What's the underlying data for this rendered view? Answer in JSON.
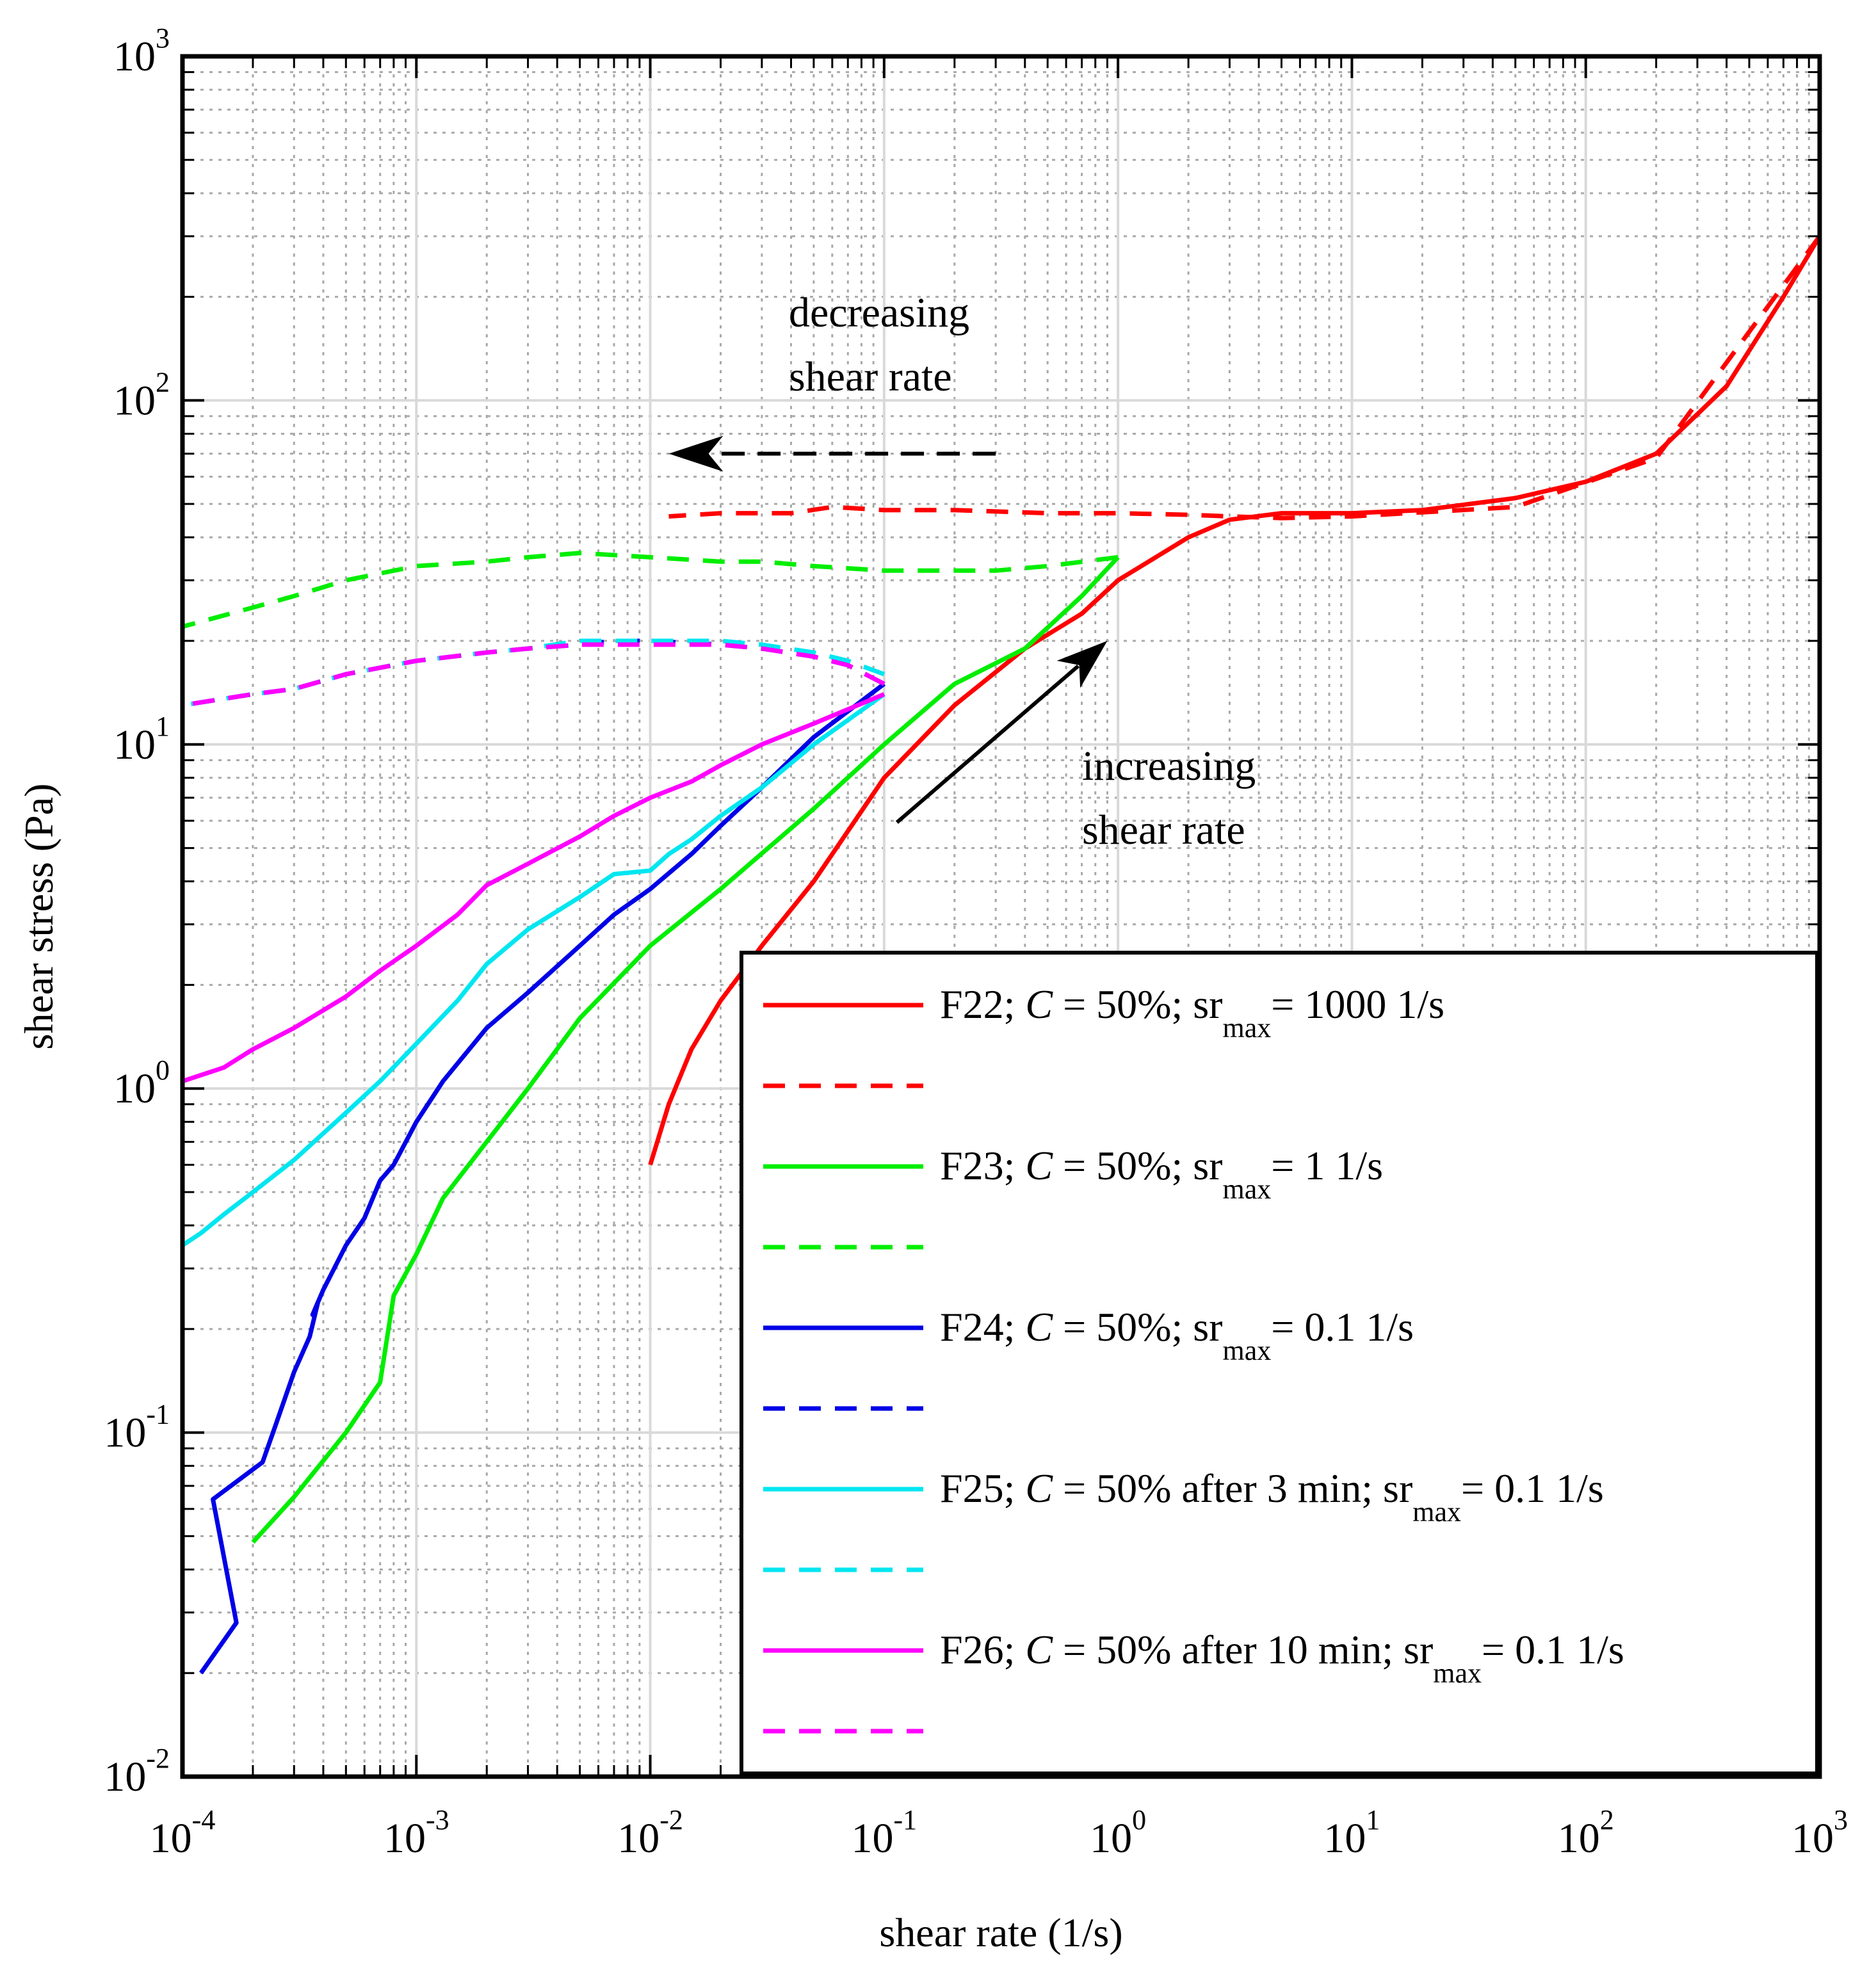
{
  "chart_data": {
    "type": "line",
    "xscale": "log",
    "yscale": "log",
    "xlim": [
      0.0001,
      1000
    ],
    "ylim": [
      0.01,
      1000
    ],
    "xlabel": "shear rate (1/s)",
    "ylabel": "shear stress (Pa)",
    "grid": true,
    "legend_position": "bottom-right",
    "xticks": [
      {
        "base": "10",
        "exp": "-4"
      },
      {
        "base": "10",
        "exp": "-3"
      },
      {
        "base": "10",
        "exp": "-2"
      },
      {
        "base": "10",
        "exp": "-1"
      },
      {
        "base": "10",
        "exp": "0"
      },
      {
        "base": "10",
        "exp": "1"
      },
      {
        "base": "10",
        "exp": "2"
      },
      {
        "base": "10",
        "exp": "3"
      }
    ],
    "yticks": [
      {
        "base": "10",
        "exp": "-2"
      },
      {
        "base": "10",
        "exp": "-1"
      },
      {
        "base": "10",
        "exp": "0"
      },
      {
        "base": "10",
        "exp": "1"
      },
      {
        "base": "10",
        "exp": "2"
      },
      {
        "base": "10",
        "exp": "3"
      }
    ],
    "annotations": [
      {
        "lines": [
          "decreasing",
          "shear rate"
        ],
        "arrow_color": "#000000",
        "arrow_style": "dashed",
        "from": [
          0.3,
          70
        ],
        "to": [
          0.012,
          70
        ]
      },
      {
        "lines": [
          "increasing",
          "shear rate"
        ],
        "arrow_color": "#000000",
        "arrow_style": "solid",
        "from": [
          0.1,
          5
        ],
        "to": [
          0.9,
          20
        ]
      }
    ],
    "legend_entries": [
      {
        "id": "f22",
        "prefix": "F22;  ",
        "var": "C",
        "mid": " = 50%; sr",
        "sub": "max",
        "suffix": "= 1000 1/s"
      },
      {
        "id": "f23",
        "prefix": "F23;  ",
        "var": "C",
        "mid": " = 50%; sr",
        "sub": "max",
        "suffix": "= 1 1/s"
      },
      {
        "id": "f24",
        "prefix": "F24;  ",
        "var": "C",
        "mid": " = 50%; sr",
        "sub": "max",
        "suffix": "= 0.1 1/s"
      },
      {
        "id": "f25",
        "prefix": "F25;  ",
        "var": "C",
        "mid": " = 50% after 3 min; sr",
        "sub": "max",
        "suffix": "= 0.1 1/s"
      },
      {
        "id": "f26",
        "prefix": "F26;  ",
        "var": "C",
        "mid": " = 50% after 10 min; sr",
        "sub": "max",
        "suffix": "= 0.1 1/s"
      }
    ],
    "series": [
      {
        "id": "f22-up",
        "name": "F22 increasing",
        "color": "#ff0000",
        "dashed": false,
        "x": [
          0.01,
          0.012,
          0.015,
          0.02,
          0.03,
          0.05,
          0.1,
          0.2,
          0.4,
          0.7,
          1,
          2,
          3,
          5,
          10,
          20,
          50,
          100,
          200,
          400,
          700,
          1000
        ],
        "y": [
          0.6,
          0.9,
          1.3,
          1.8,
          2.6,
          4,
          8,
          13,
          19,
          24,
          30,
          40,
          45,
          47,
          47,
          48,
          52,
          58,
          70,
          110,
          200,
          300
        ]
      },
      {
        "id": "f22-down",
        "name": "F22 decreasing",
        "color": "#ff0000",
        "dashed": true,
        "x": [
          1000,
          200,
          50,
          10,
          5,
          3,
          2,
          1,
          0.5,
          0.2,
          0.1,
          0.06,
          0.04,
          0.02,
          0.012
        ],
        "y": [
          300,
          68,
          49,
          46,
          45.5,
          46,
          46.5,
          47,
          47,
          48,
          48,
          49,
          47,
          47,
          46
        ]
      },
      {
        "id": "f23-up",
        "name": "F23 increasing",
        "color": "#00ee00",
        "dashed": false,
        "x": [
          0.0002,
          0.0003,
          0.0005,
          0.0007,
          0.0008,
          0.001,
          0.0013,
          0.002,
          0.003,
          0.005,
          0.01,
          0.02,
          0.05,
          0.1,
          0.2,
          0.4,
          0.7,
          1
        ],
        "y": [
          0.048,
          0.065,
          0.1,
          0.14,
          0.25,
          0.33,
          0.48,
          0.7,
          1,
          1.6,
          2.6,
          3.8,
          6.5,
          10,
          15,
          19,
          27,
          35
        ]
      },
      {
        "id": "f23-down",
        "name": "F23 decreasing",
        "color": "#00ee00",
        "dashed": true,
        "x": [
          1,
          0.5,
          0.3,
          0.2,
          0.1,
          0.05,
          0.03,
          0.02,
          0.01,
          0.005,
          0.003,
          0.002,
          0.001,
          0.0005,
          0.0003,
          0.0002,
          0.0001
        ],
        "y": [
          35,
          33,
          32,
          32,
          32,
          33,
          34,
          34,
          35,
          36,
          35,
          34,
          33,
          30,
          27,
          25,
          22
        ]
      },
      {
        "id": "f24-up",
        "name": "F24 increasing",
        "color": "#0000e6",
        "dashed": false,
        "x": [
          0.00012,
          0.00017,
          0.000135,
          0.00022,
          0.00025,
          0.0003,
          0.00035,
          0.00038,
          0.00036,
          0.0004,
          0.0005,
          0.0006,
          0.0007,
          0.0008,
          0.001,
          0.0013,
          0.002,
          0.003,
          0.005,
          0.007,
          0.01,
          0.015,
          0.02,
          0.03,
          0.05,
          0.1
        ],
        "y": [
          0.02,
          0.028,
          0.064,
          0.082,
          0.105,
          0.15,
          0.19,
          0.24,
          0.22,
          0.26,
          0.35,
          0.42,
          0.54,
          0.6,
          0.8,
          1.05,
          1.5,
          1.9,
          2.6,
          3.2,
          3.8,
          4.8,
          5.8,
          7.5,
          10.5,
          15
        ]
      },
      {
        "id": "f24-down",
        "name": "F24 decreasing",
        "color": "#0000e6",
        "dashed": true,
        "x": [
          0.1,
          0.07,
          0.05,
          0.03,
          0.02,
          0.01,
          0.007,
          0.005,
          0.003,
          0.002,
          0.001,
          0.0005,
          0.0003,
          0.0002,
          0.0001
        ],
        "y": [
          15,
          17,
          18,
          19,
          19.5,
          20,
          20,
          19.5,
          19,
          18.5,
          17.5,
          16,
          14.5,
          14,
          13
        ]
      },
      {
        "id": "f25-up",
        "name": "F25 increasing",
        "color": "#00e6f0",
        "dashed": false,
        "x": [
          0.0001,
          0.00012,
          0.00015,
          0.0002,
          0.0003,
          0.0005,
          0.0007,
          0.001,
          0.0015,
          0.002,
          0.003,
          0.005,
          0.007,
          0.01,
          0.012,
          0.015,
          0.02,
          0.03,
          0.05,
          0.1
        ],
        "y": [
          0.35,
          0.38,
          0.43,
          0.5,
          0.62,
          0.85,
          1.05,
          1.35,
          1.8,
          2.3,
          2.9,
          3.6,
          4.2,
          4.3,
          4.8,
          5.3,
          6.2,
          7.5,
          10,
          14
        ]
      },
      {
        "id": "f25-down",
        "name": "F25 decreasing",
        "color": "#00e6f0",
        "dashed": true,
        "x": [
          0.1,
          0.07,
          0.05,
          0.03,
          0.02,
          0.01,
          0.007,
          0.005,
          0.003,
          0.002,
          0.001,
          0.0005,
          0.0003,
          0.0002,
          0.0001
        ],
        "y": [
          16,
          17.5,
          18.5,
          19.5,
          20,
          20,
          20,
          20,
          19,
          18.5,
          17.5,
          16,
          14.5,
          14,
          13
        ]
      },
      {
        "id": "f26-up",
        "name": "F26 increasing",
        "color": "#ff00ff",
        "dashed": false,
        "x": [
          0.0001,
          0.00015,
          0.0002,
          0.0003,
          0.0005,
          0.0007,
          0.001,
          0.0015,
          0.002,
          0.003,
          0.005,
          0.007,
          0.01,
          0.015,
          0.02,
          0.03,
          0.05,
          0.1
        ],
        "y": [
          1.05,
          1.15,
          1.3,
          1.5,
          1.85,
          2.2,
          2.6,
          3.2,
          3.9,
          4.5,
          5.4,
          6.2,
          7,
          7.8,
          8.7,
          10,
          11.5,
          14
        ]
      },
      {
        "id": "f26-down",
        "name": "F26 decreasing",
        "color": "#ff00ff",
        "dashed": true,
        "x": [
          0.1,
          0.07,
          0.05,
          0.03,
          0.02,
          0.01,
          0.007,
          0.005,
          0.003,
          0.002,
          0.001,
          0.0005,
          0.0003,
          0.0002,
          0.0001
        ],
        "y": [
          15,
          17,
          18,
          19,
          19.5,
          19.5,
          19.5,
          19.5,
          19,
          18.5,
          17.5,
          16,
          14.5,
          14,
          13
        ]
      }
    ]
  }
}
